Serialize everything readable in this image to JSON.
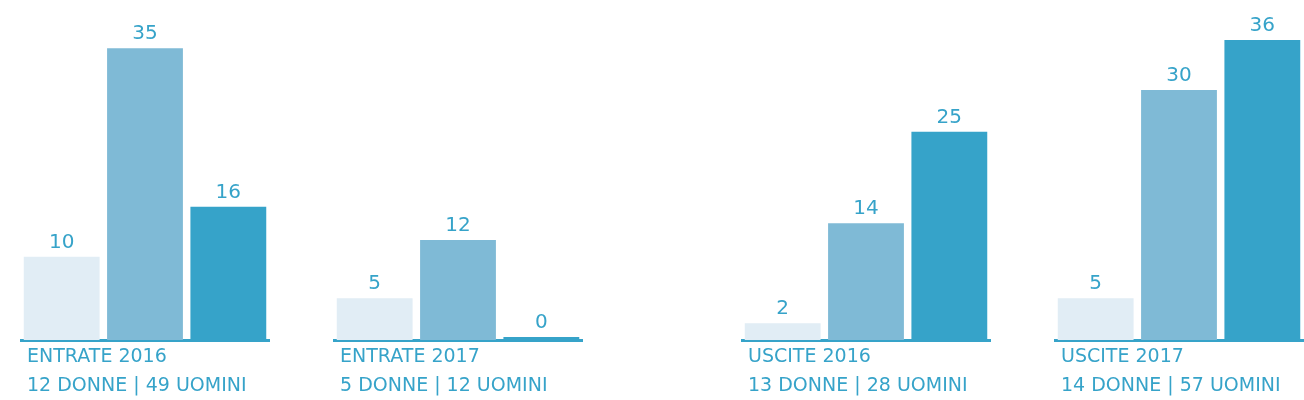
{
  "chart_data": [
    {
      "type": "bar",
      "xlabel": "ENTRATE 2016",
      "subtitle": "12 DONNE | 49 UOMINI",
      "categories": [
        null,
        null,
        null
      ],
      "values": [
        10,
        35,
        16
      ],
      "colors": [
        "#e1edf5",
        "#7fbad6",
        "#36a3c9"
      ],
      "data_labels": true
    },
    {
      "type": "bar",
      "xlabel": "ENTRATE 2017",
      "subtitle": "5 DONNE | 12 UOMINI",
      "categories": [
        null,
        null,
        null
      ],
      "values": [
        5,
        12,
        0
      ],
      "colors": [
        "#e1edf5",
        "#7fbad6",
        "#36a3c9"
      ],
      "data_labels": true
    },
    {
      "type": "bar",
      "xlabel": "USCITE 2016",
      "subtitle": "13 DONNE | 28 UOMINI",
      "categories": [
        null,
        null,
        null
      ],
      "values": [
        2,
        14,
        25
      ],
      "colors": [
        "#e1edf5",
        "#7fbad6",
        "#36a3c9"
      ],
      "data_labels": true
    },
    {
      "type": "bar",
      "xlabel": "USCITE 2017",
      "subtitle": "14 DONNE | 57 UOMINI",
      "categories": [
        null,
        null,
        null
      ],
      "values": [
        5,
        30,
        36
      ],
      "colors": [
        "#e1edf5",
        "#7fbad6",
        "#36a3c9"
      ],
      "data_labels": true
    }
  ]
}
